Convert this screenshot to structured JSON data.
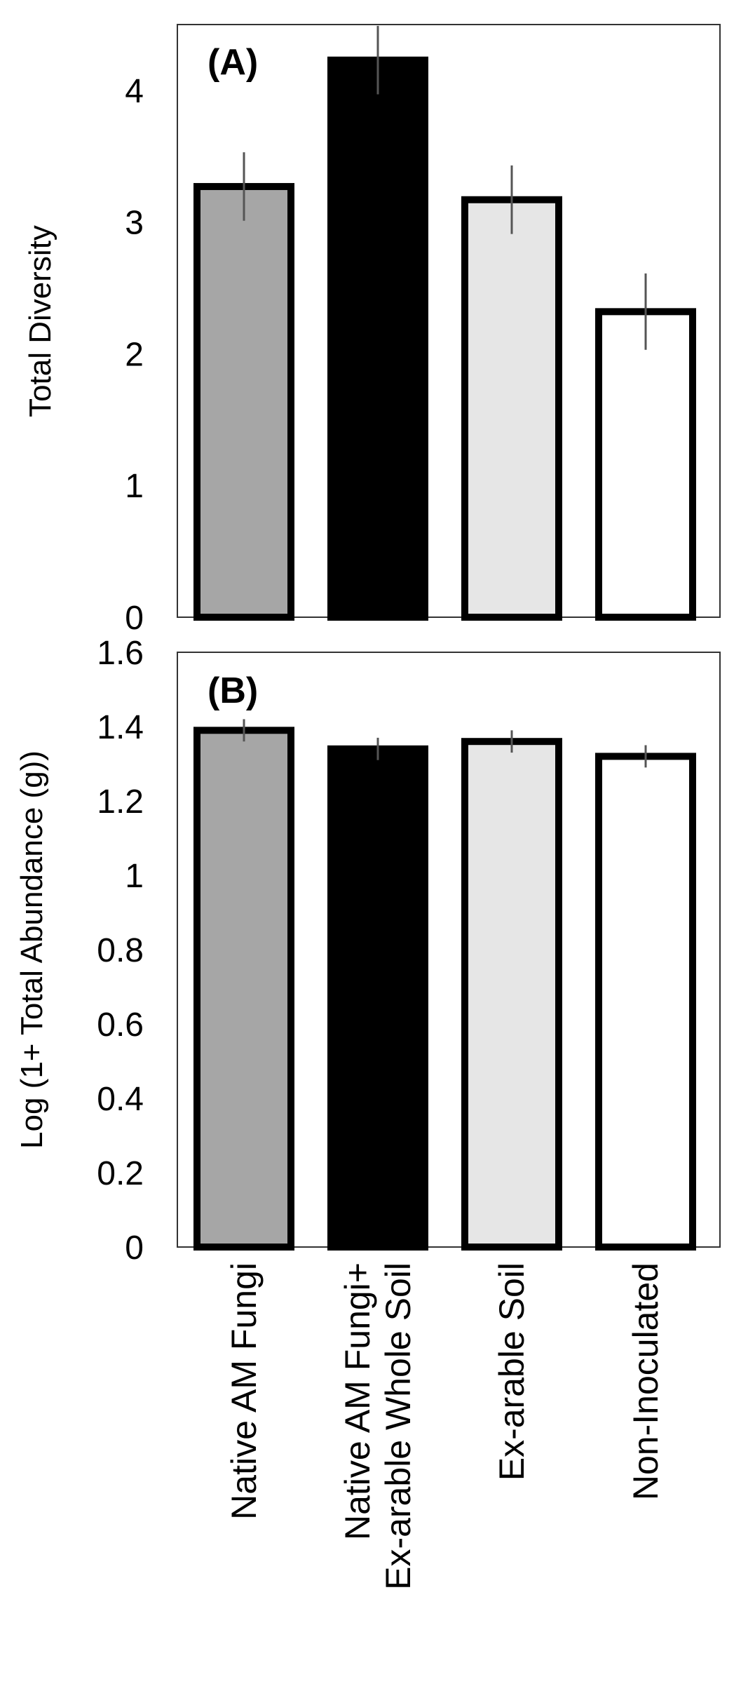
{
  "chart_data": [
    {
      "type": "bar",
      "panel_label": "(A)",
      "ylabel": "Total Diversity",
      "ylim": [
        0,
        4.5
      ],
      "yticks": [
        "0",
        "1",
        "2",
        "3",
        "4"
      ],
      "categories": [
        "Native AM Fungi",
        "Native AM Fungi+ Ex-arable Whole Soil",
        "Ex-arable Soil",
        "Non-Inoculated"
      ],
      "values": [
        3.27,
        4.23,
        3.17,
        2.32
      ],
      "errors": [
        0.26,
        0.26,
        0.26,
        0.29
      ],
      "colors": [
        "#a6a6a6",
        "#000000",
        "#e6e6e6",
        "#ffffff"
      ],
      "grid": false,
      "legend": "none"
    },
    {
      "type": "bar",
      "panel_label": "(B)",
      "ylabel": "Log (1+ Total Abundance (g))",
      "ylim": [
        0,
        1.6
      ],
      "yticks": [
        "0",
        "0.2",
        "0.4",
        "0.6",
        "0.8",
        "1",
        "1.2",
        "1.4",
        "1.6"
      ],
      "categories": [
        "Native AM Fungi",
        "Native AM Fungi+ Ex-arable Whole Soil",
        "Ex-arable Soil",
        "Non-Inoculated"
      ],
      "values": [
        1.39,
        1.34,
        1.36,
        1.32
      ],
      "errors": [
        0.03,
        0.03,
        0.03,
        0.03
      ],
      "colors": [
        "#a6a6a6",
        "#000000",
        "#e6e6e6",
        "#ffffff"
      ],
      "grid": false,
      "legend": "none"
    }
  ],
  "x_category_labels": [
    [
      "Native AM Fungi"
    ],
    [
      "Native AM Fungi+",
      "Ex-arable Whole Soil"
    ],
    [
      "Ex-arable Soil"
    ],
    [
      "Non-Inoculated"
    ]
  ]
}
